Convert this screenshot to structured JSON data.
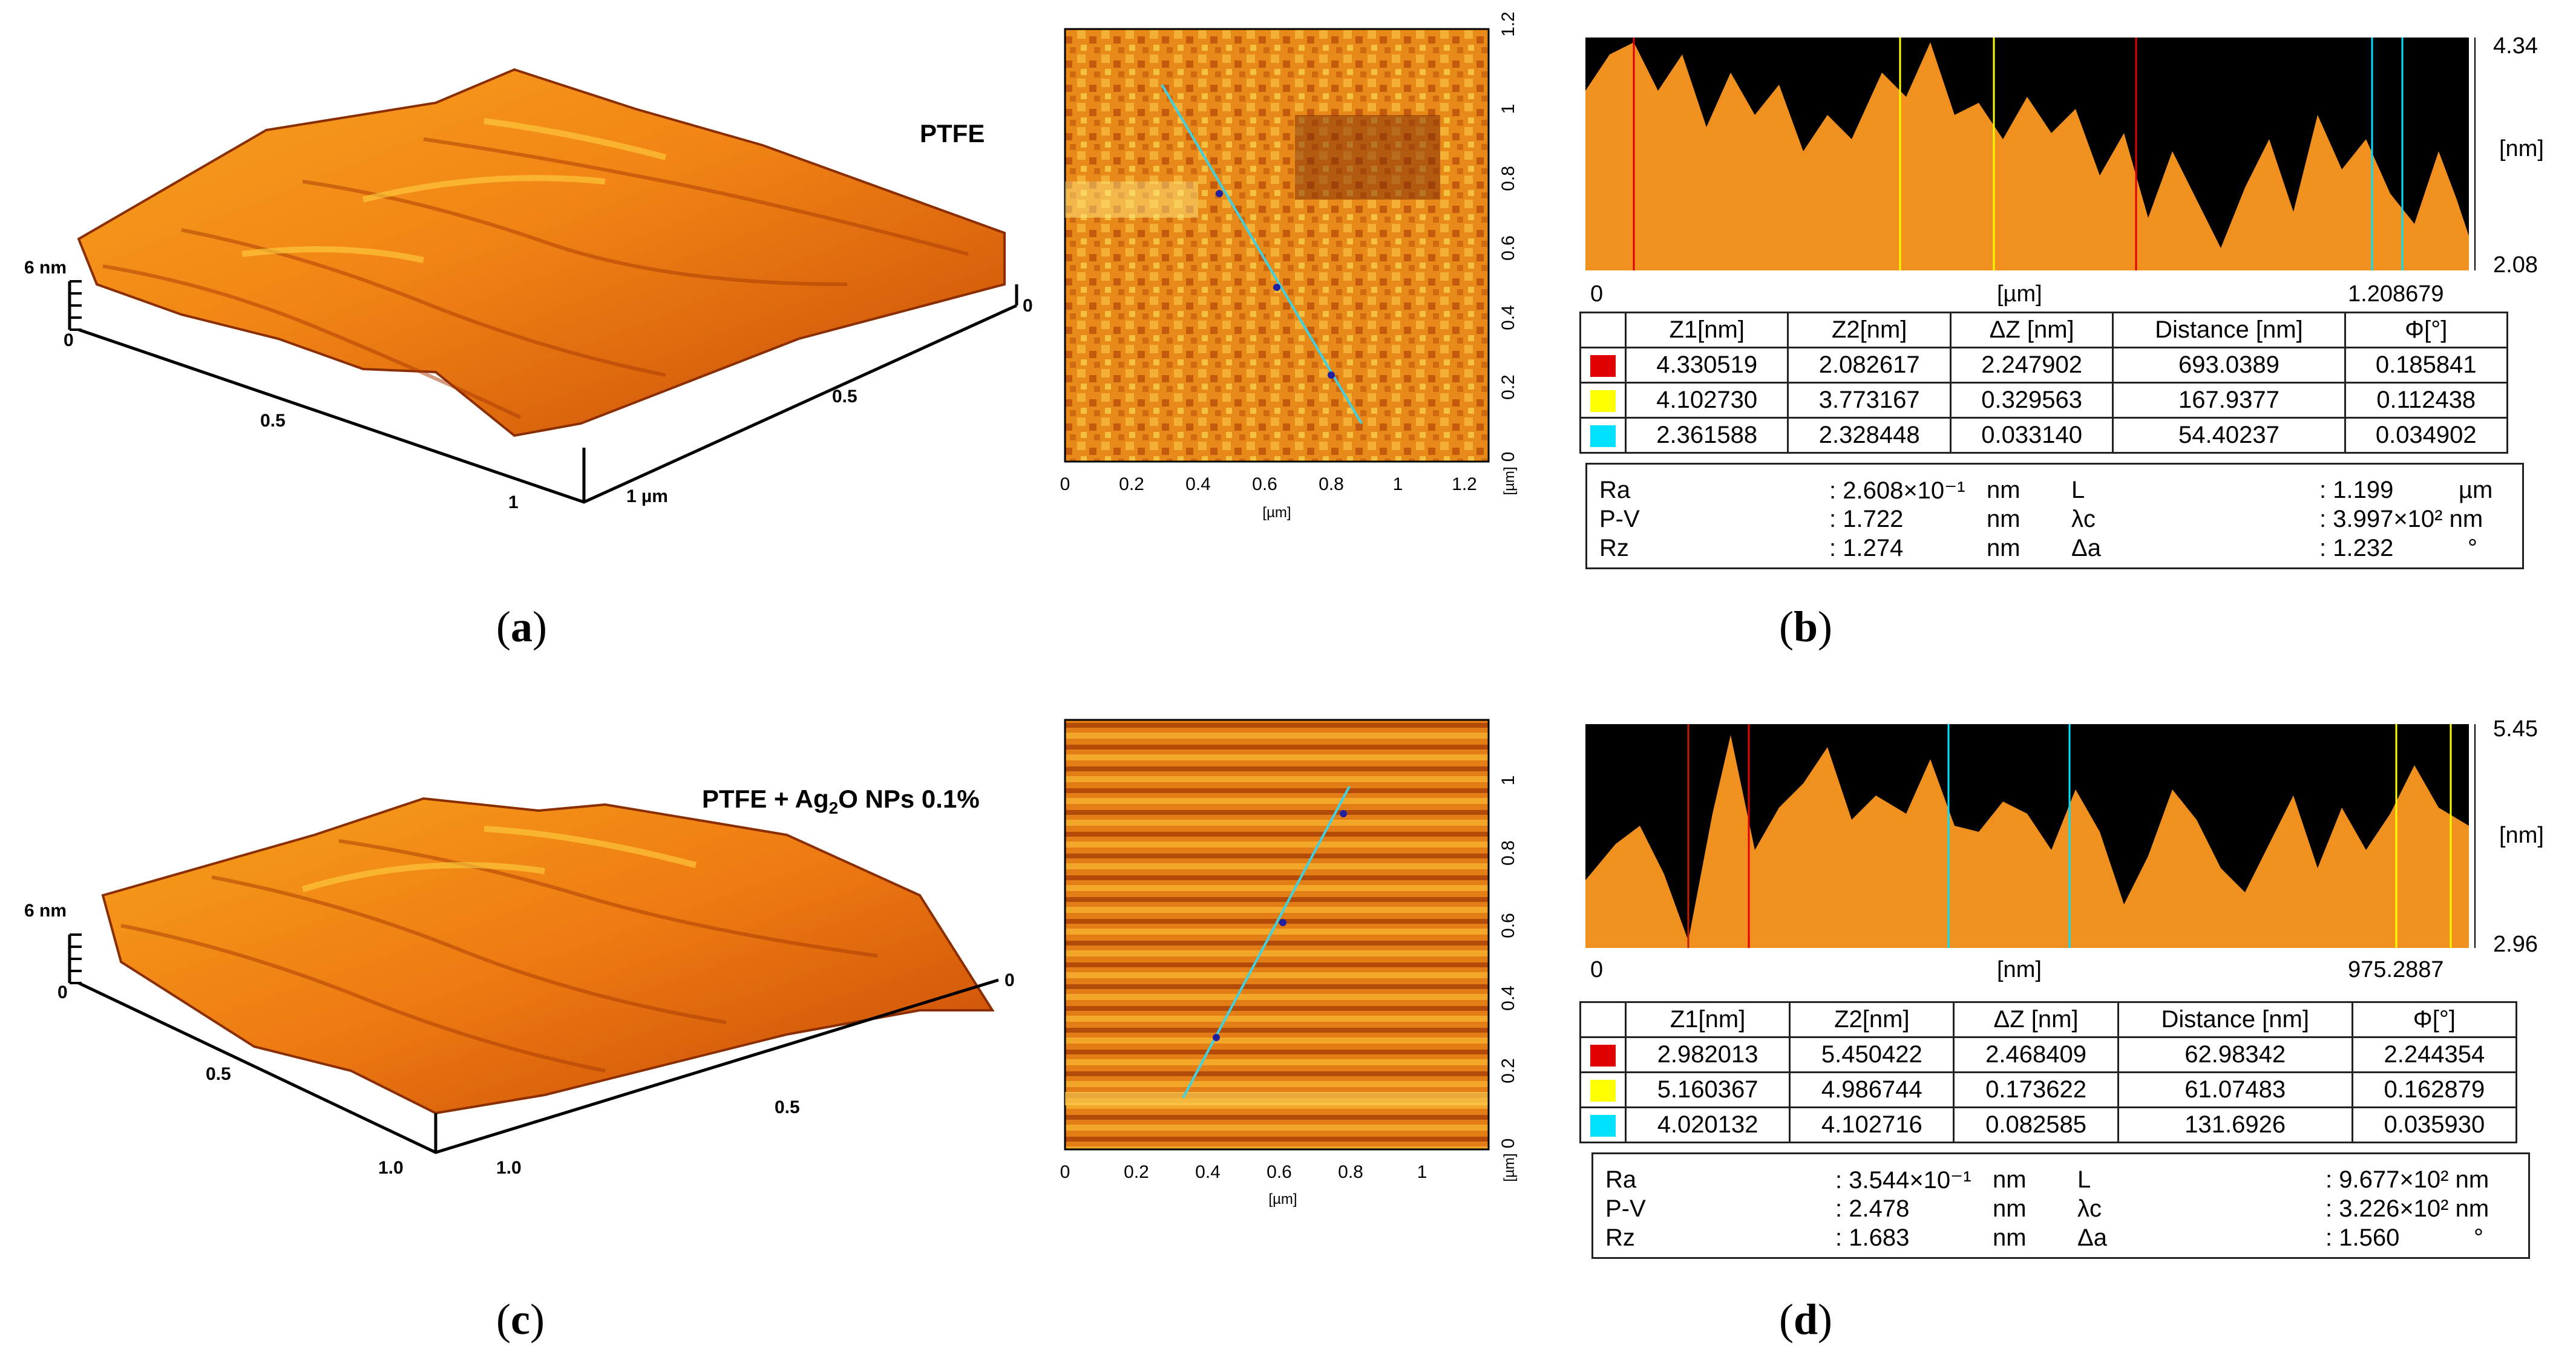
{
  "colors": {
    "profile_fill": "#F0901E",
    "background_black": "#000000",
    "red": "#E00000",
    "yellow": "#FFFF00",
    "cyan": "#00E0FF"
  },
  "panel_a": {
    "sample_label": "PTFE",
    "z_scale": "6 nm",
    "z_zero": "0",
    "x_ticks": [
      "0.5",
      "1"
    ],
    "y_ticks": [
      "0",
      "0.5",
      "1 µm"
    ]
  },
  "panel_c": {
    "sample_label_pre": "PTFE + Ag",
    "sample_label_sub": "2",
    "sample_label_post": "O NPs 0.1%",
    "z_scale": "6 nm",
    "z_zero": "0",
    "x_ticks": [
      "0.5",
      "1.0"
    ],
    "y_ticks": [
      "0",
      "0.5",
      "1.0"
    ]
  },
  "map_b": {
    "x_ticks": [
      "0",
      "0.2",
      "0.4",
      "0.6",
      "0.8",
      "1",
      "1.2"
    ],
    "y_ticks": [
      "0",
      "0.2",
      "0.4",
      "0.6",
      "0.8",
      "1",
      "1.2"
    ],
    "x_unit": "[µm]",
    "y_unit": "[µm]"
  },
  "map_d": {
    "x_ticks": [
      "0",
      "0.2",
      "0.4",
      "0.6",
      "0.8",
      "1"
    ],
    "y_ticks": [
      "0",
      "0.2",
      "0.4",
      "0.6",
      "0.8",
      "1"
    ],
    "x_unit": "[µm]",
    "y_unit": "[µm]"
  },
  "profile_b": {
    "z_max": "4.34",
    "z_min": "2.08",
    "z_unit": "[nm]",
    "x_start": "0",
    "x_unit": "[µm]",
    "x_end": "1.208679"
  },
  "profile_d": {
    "z_max": "5.45",
    "z_min": "2.96",
    "z_unit": "[nm]",
    "x_start": "0",
    "x_unit": "[nm]",
    "x_end": "975.2887"
  },
  "table_headers": [
    "Z1[nm]",
    "Z2[nm]",
    "ΔZ [nm]",
    "Distance [nm]",
    "Φ[°]"
  ],
  "table_b": [
    [
      "4.330519",
      "2.082617",
      "2.247902",
      "693.0389",
      "0.185841"
    ],
    [
      "4.102730",
      "3.773167",
      "0.329563",
      "167.9377",
      "0.112438"
    ],
    [
      "2.361588",
      "2.328448",
      "0.033140",
      "54.40237",
      "0.034902"
    ]
  ],
  "table_d": [
    [
      "2.982013",
      "5.450422",
      "2.468409",
      "62.98342",
      "2.244354"
    ],
    [
      "5.160367",
      "4.986744",
      "0.173622",
      "61.07483",
      "0.162879"
    ],
    [
      "4.020132",
      "4.102716",
      "0.082585",
      "131.6926",
      "0.035930"
    ]
  ],
  "stats_b": {
    "ra_label": "Ra",
    "ra_value": ": 2.608×10⁻¹",
    "ra_unit": "nm",
    "pv_label": "P-V",
    "pv_value": ": 1.722",
    "pv_unit": "nm",
    "rz_label": "Rz",
    "rz_value": ": 1.274",
    "rz_unit": "nm",
    "l_label": "L",
    "l_value": ": 1.199",
    "l_unit": "µm",
    "lc_label": "λc",
    "lc_value": ": 3.997×10² nm",
    "lc_unit": "",
    "da_label": "Δa",
    "da_value": ": 1.232",
    "da_unit": "°"
  },
  "stats_d": {
    "ra_label": "Ra",
    "ra_value": ": 3.544×10⁻¹",
    "ra_unit": "nm",
    "pv_label": "P-V",
    "pv_value": ": 2.478",
    "pv_unit": "nm",
    "rz_label": "Rz",
    "rz_value": ": 1.683",
    "rz_unit": "nm",
    "l_label": "L",
    "l_value": ": 9.677×10² nm",
    "l_unit": "",
    "lc_label": "λc",
    "lc_value": ": 3.226×10² nm",
    "lc_unit": "",
    "da_label": "Δa",
    "da_value": ": 1.560",
    "da_unit": "°"
  },
  "captions": {
    "a": "a",
    "b": "b",
    "c": "c",
    "d": "d"
  }
}
